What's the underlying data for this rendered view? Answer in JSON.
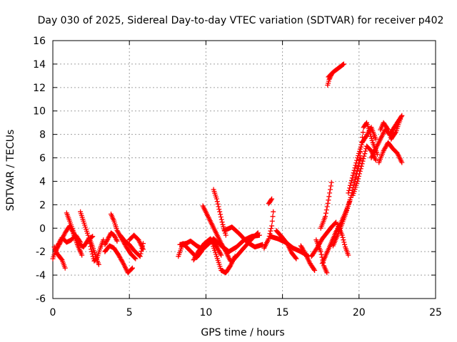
{
  "chart_data": {
    "type": "scatter",
    "title": "Day 030 of 2025, Sidereal Day-to-day VTEC variation (SDTVAR) for receiver p402",
    "xlabel": "GPS time / hours",
    "ylabel": "SDTVAR / TECUs",
    "xlim": [
      0,
      25
    ],
    "ylim": [
      -6,
      16
    ],
    "xticks": [
      0,
      5,
      10,
      15,
      20,
      25
    ],
    "yticks": [
      -6,
      -4,
      -2,
      0,
      2,
      4,
      6,
      8,
      10,
      12,
      14,
      16
    ],
    "grid": true,
    "marker": "+",
    "marker_color": "#ff0000",
    "series": [
      {
        "name": "SDTVAR",
        "tracks": [
          [
            [
              0.0,
              -2.6
            ],
            [
              0.3,
              -1.5
            ],
            [
              0.6,
              -0.8
            ],
            [
              0.9,
              -1.2
            ],
            [
              1.2,
              -1.0
            ],
            [
              1.5,
              -0.6
            ],
            [
              1.8,
              -1.2
            ]
          ],
          [
            [
              0.1,
              -1.6
            ],
            [
              0.3,
              -2.2
            ],
            [
              0.6,
              -2.7
            ],
            [
              0.8,
              -3.4
            ]
          ],
          [
            [
              0.2,
              -1.9
            ],
            [
              0.5,
              -1.2
            ],
            [
              0.8,
              -0.4
            ],
            [
              1.1,
              0.2
            ],
            [
              1.3,
              -0.3
            ],
            [
              1.6,
              -1.4
            ],
            [
              1.9,
              -2.3
            ]
          ],
          [
            [
              0.9,
              1.3
            ],
            [
              1.1,
              0.6
            ],
            [
              1.4,
              -0.5
            ],
            [
              1.7,
              -1.3
            ],
            [
              2.0,
              -1.6
            ],
            [
              2.3,
              -1.0
            ],
            [
              2.6,
              -0.7
            ]
          ],
          [
            [
              1.8,
              1.4
            ],
            [
              2.0,
              0.6
            ],
            [
              2.3,
              -0.6
            ],
            [
              2.5,
              -1.8
            ],
            [
              2.7,
              -2.8
            ],
            [
              2.9,
              -2.5
            ],
            [
              3.1,
              -1.7
            ],
            [
              3.3,
              -1.0
            ]
          ],
          [
            [
              2.4,
              -0.9
            ],
            [
              2.6,
              -1.6
            ],
            [
              2.8,
              -2.4
            ],
            [
              3.0,
              -3.1
            ]
          ],
          [
            [
              3.4,
              -1.4
            ],
            [
              3.6,
              -0.9
            ],
            [
              3.8,
              -0.4
            ],
            [
              4.0,
              -0.6
            ],
            [
              4.2,
              -1.1
            ]
          ],
          [
            [
              3.4,
              -2.0
            ],
            [
              3.7,
              -1.5
            ],
            [
              4.0,
              -1.7
            ],
            [
              4.3,
              -2.3
            ],
            [
              4.6,
              -3.0
            ],
            [
              4.9,
              -3.8
            ],
            [
              5.2,
              -3.4
            ]
          ],
          [
            [
              3.8,
              1.2
            ],
            [
              4.0,
              0.6
            ],
            [
              4.2,
              -0.2
            ],
            [
              4.5,
              -0.9
            ],
            [
              4.8,
              -1.6
            ],
            [
              5.1,
              -2.2
            ],
            [
              5.4,
              -2.6
            ]
          ],
          [
            [
              4.4,
              -0.6
            ],
            [
              4.7,
              -1.1
            ],
            [
              5.0,
              -1.4
            ],
            [
              5.3,
              -1.9
            ],
            [
              5.7,
              -2.4
            ],
            [
              5.9,
              -1.3
            ]
          ],
          [
            [
              5.0,
              -1.0
            ],
            [
              5.3,
              -0.6
            ],
            [
              5.6,
              -1.0
            ],
            [
              5.9,
              -1.8
            ]
          ],
          [
            [
              8.2,
              -2.4
            ],
            [
              8.5,
              -1.3
            ],
            [
              8.8,
              -1.7
            ],
            [
              9.1,
              -2.1
            ],
            [
              9.4,
              -2.5
            ],
            [
              9.7,
              -2.0
            ]
          ],
          [
            [
              8.3,
              -1.4
            ],
            [
              8.7,
              -1.3
            ],
            [
              9.0,
              -1.1
            ],
            [
              9.4,
              -1.5
            ],
            [
              9.8,
              -1.8
            ],
            [
              10.2,
              -1.3
            ],
            [
              10.5,
              -0.9
            ]
          ],
          [
            [
              9.2,
              -2.7
            ],
            [
              9.5,
              -2.0
            ],
            [
              9.9,
              -1.3
            ],
            [
              10.3,
              -0.9
            ],
            [
              10.7,
              -1.6
            ],
            [
              11.0,
              -2.3
            ]
          ],
          [
            [
              9.8,
              1.9
            ],
            [
              10.1,
              1.1
            ],
            [
              10.4,
              0.3
            ],
            [
              10.7,
              -0.5
            ],
            [
              11.0,
              -1.3
            ],
            [
              11.3,
              -2.0
            ],
            [
              11.6,
              -2.8
            ]
          ],
          [
            [
              10.5,
              3.3
            ],
            [
              10.7,
              2.5
            ],
            [
              10.9,
              1.4
            ],
            [
              11.1,
              0.3
            ],
            [
              11.3,
              -0.6
            ]
          ],
          [
            [
              10.4,
              -1.2
            ],
            [
              10.7,
              -2.4
            ],
            [
              11.0,
              -3.6
            ],
            [
              11.3,
              -3.8
            ],
            [
              11.6,
              -3.2
            ],
            [
              11.9,
              -2.4
            ]
          ],
          [
            [
              10.5,
              -0.9
            ],
            [
              11.0,
              -1.5
            ],
            [
              11.5,
              -2.0
            ],
            [
              12.0,
              -1.6
            ],
            [
              12.5,
              -1.0
            ],
            [
              13.0,
              -0.7
            ],
            [
              13.5,
              -0.6
            ]
          ],
          [
            [
              11.2,
              -0.2
            ],
            [
              11.7,
              0.1
            ],
            [
              12.2,
              -0.5
            ],
            [
              12.7,
              -1.2
            ],
            [
              13.2,
              -1.6
            ],
            [
              13.7,
              -1.4
            ]
          ],
          [
            [
              11.8,
              -2.7
            ],
            [
              12.2,
              -2.1
            ],
            [
              12.6,
              -1.5
            ],
            [
              13.0,
              -0.9
            ],
            [
              13.4,
              -0.4
            ]
          ],
          [
            [
              13.8,
              -1.7
            ],
            [
              14.1,
              -0.9
            ],
            [
              14.3,
              0.2
            ],
            [
              14.4,
              1.4
            ]
          ],
          [
            [
              14.1,
              2.1
            ],
            [
              14.3,
              2.5
            ]
          ],
          [
            [
              14.6,
              -0.2
            ],
            [
              15.0,
              -0.8
            ],
            [
              15.3,
              -1.3
            ],
            [
              15.6,
              -2.1
            ],
            [
              15.9,
              -2.6
            ]
          ],
          [
            [
              14.2,
              -0.7
            ],
            [
              14.7,
              -0.9
            ],
            [
              15.2,
              -1.2
            ],
            [
              15.7,
              -1.7
            ],
            [
              16.2,
              -2.0
            ],
            [
              16.7,
              -2.4
            ]
          ],
          [
            [
              16.2,
              -1.5
            ],
            [
              16.5,
              -2.2
            ],
            [
              16.8,
              -3.0
            ],
            [
              17.1,
              -3.6
            ]
          ],
          [
            [
              16.9,
              -2.4
            ],
            [
              17.3,
              -1.6
            ],
            [
              17.6,
              -0.9
            ],
            [
              17.9,
              -0.4
            ],
            [
              18.2,
              0.1
            ],
            [
              18.5,
              0.5
            ]
          ],
          [
            [
              17.2,
              -1.0
            ],
            [
              17.5,
              -2.0
            ],
            [
              17.7,
              -3.2
            ],
            [
              17.9,
              -3.8
            ]
          ],
          [
            [
              17.5,
              0.0
            ],
            [
              17.8,
              1.0
            ],
            [
              18.0,
              2.4
            ],
            [
              18.2,
              3.9
            ]
          ],
          [
            [
              17.6,
              -3.0
            ],
            [
              17.9,
              -2.1
            ],
            [
              18.2,
              -1.2
            ],
            [
              18.5,
              -0.3
            ],
            [
              18.8,
              0.4
            ],
            [
              19.1,
              1.3
            ],
            [
              19.4,
              2.3
            ]
          ],
          [
            [
              18.3,
              -1.5
            ],
            [
              18.6,
              -0.6
            ],
            [
              18.9,
              0.4
            ],
            [
              19.2,
              1.5
            ],
            [
              19.5,
              2.8
            ],
            [
              19.8,
              4.4
            ],
            [
              20.1,
              6.0
            ]
          ],
          [
            [
              18.6,
              0.3
            ],
            [
              18.9,
              -0.6
            ],
            [
              19.1,
              -1.6
            ],
            [
              19.3,
              -2.3
            ]
          ],
          [
            [
              19.3,
              3.0
            ],
            [
              19.6,
              4.5
            ],
            [
              19.9,
              6.0
            ],
            [
              20.2,
              7.3
            ],
            [
              20.5,
              7.9
            ],
            [
              20.8,
              8.6
            ],
            [
              21.1,
              7.6
            ]
          ],
          [
            [
              19.6,
              2.8
            ],
            [
              19.9,
              4.0
            ],
            [
              20.2,
              5.5
            ],
            [
              20.5,
              7.0
            ],
            [
              20.8,
              6.6
            ],
            [
              21.1,
              5.8
            ]
          ],
          [
            [
              19.8,
              4.3
            ],
            [
              20.1,
              6.5
            ],
            [
              20.3,
              8.6
            ],
            [
              20.5,
              9.0
            ],
            [
              20.7,
              8.2
            ],
            [
              20.9,
              7.3
            ],
            [
              21.2,
              6.3
            ]
          ],
          [
            [
              20.8,
              6.0
            ],
            [
              21.1,
              6.8
            ],
            [
              21.4,
              7.6
            ],
            [
              21.7,
              8.4
            ],
            [
              22.0,
              8.0
            ],
            [
              22.3,
              8.6
            ],
            [
              22.6,
              9.2
            ],
            [
              22.8,
              9.6
            ]
          ],
          [
            [
              21.3,
              5.6
            ],
            [
              21.6,
              6.6
            ],
            [
              21.9,
              7.3
            ],
            [
              22.2,
              6.8
            ],
            [
              22.5,
              6.4
            ],
            [
              22.8,
              5.6
            ]
          ],
          [
            [
              21.4,
              8.4
            ],
            [
              21.6,
              9.0
            ],
            [
              21.9,
              8.4
            ],
            [
              22.1,
              7.6
            ],
            [
              22.4,
              8.2
            ],
            [
              22.7,
              9.3
            ]
          ],
          [
            [
              18.0,
              12.9
            ],
            [
              18.3,
              13.3
            ],
            [
              18.6,
              13.6
            ],
            [
              18.9,
              13.9
            ],
            [
              19.0,
              14.0
            ]
          ],
          [
            [
              17.95,
              12.2
            ],
            [
              18.05,
              12.7
            ],
            [
              18.2,
              13.1
            ]
          ]
        ]
      }
    ]
  }
}
